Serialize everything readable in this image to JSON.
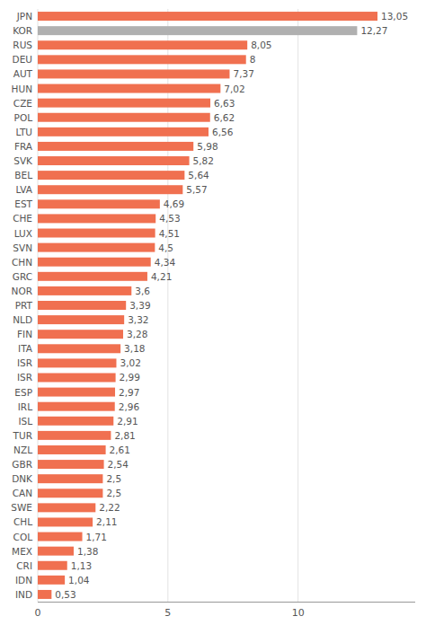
{
  "chart_data": {
    "type": "bar",
    "orientation": "horizontal",
    "categories": [
      "JPN",
      "KOR",
      "RUS",
      "DEU",
      "AUT",
      "HUN",
      "CZE",
      "POL",
      "LTU",
      "FRA",
      "SVK",
      "BEL",
      "LVA",
      "EST",
      "CHE",
      "LUX",
      "SVN",
      "CHN",
      "GRC",
      "NOR",
      "PRT",
      "NLD",
      "FIN",
      "ITA",
      "ISR",
      "ISR",
      "ESP",
      "IRL",
      "ISL",
      "TUR",
      "NZL",
      "GBR",
      "DNK",
      "CAN",
      "SWE",
      "CHL",
      "COL",
      "MEX",
      "CRI",
      "IDN",
      "IND"
    ],
    "values": [
      13.05,
      12.27,
      8.05,
      8.0,
      7.37,
      7.02,
      6.63,
      6.62,
      6.56,
      5.98,
      5.82,
      5.64,
      5.57,
      4.69,
      4.53,
      4.51,
      4.5,
      4.34,
      4.21,
      3.6,
      3.39,
      3.32,
      3.28,
      3.18,
      3.02,
      2.99,
      2.97,
      2.96,
      2.91,
      2.81,
      2.61,
      2.54,
      2.5,
      2.5,
      2.22,
      2.11,
      1.71,
      1.38,
      1.13,
      1.04,
      0.53
    ],
    "value_labels": [
      "13,05",
      "12,27",
      "8,05",
      "8",
      "7,37",
      "7,02",
      "6,63",
      "6,62",
      "6,56",
      "5,98",
      "5,82",
      "5,64",
      "5,57",
      "4,69",
      "4,53",
      "4,51",
      "4,5",
      "4,34",
      "4,21",
      "3,6",
      "3,39",
      "3,32",
      "3,28",
      "3,18",
      "3,02",
      "2,99",
      "2,97",
      "2,96",
      "2,91",
      "2,81",
      "2,61",
      "2,54",
      "2,5",
      "2,5",
      "2,22",
      "2,11",
      "1,71",
      "1,38",
      "1,13",
      "1,04",
      "0,53"
    ],
    "colors": [
      "#f07050",
      "#b0b0b0",
      "#f07050",
      "#f07050",
      "#f07050",
      "#f07050",
      "#f07050",
      "#f07050",
      "#f07050",
      "#f07050",
      "#f07050",
      "#f07050",
      "#f07050",
      "#f07050",
      "#f07050",
      "#f07050",
      "#f07050",
      "#f07050",
      "#f07050",
      "#f07050",
      "#f07050",
      "#f07050",
      "#f07050",
      "#f07050",
      "#f07050",
      "#f07050",
      "#f07050",
      "#f07050",
      "#f07050",
      "#f07050",
      "#f07050",
      "#f07050",
      "#f07050",
      "#f07050",
      "#f07050",
      "#f07050",
      "#f07050",
      "#f07050",
      "#f07050",
      "#f07050",
      "#f07050"
    ],
    "xlim": [
      0,
      14.5
    ],
    "xticks": [
      0,
      5,
      10
    ],
    "grid": true,
    "data_labels": true
  }
}
